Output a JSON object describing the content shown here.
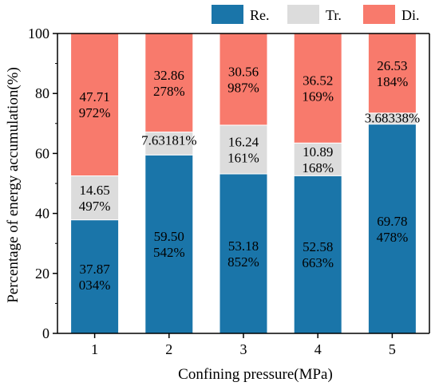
{
  "chart_data": {
    "type": "bar",
    "stacked": true,
    "title": "",
    "xlabel": "Confining pressure(MPa)",
    "ylabel": "Percentage of energy accumulation(%)",
    "categories": [
      "1",
      "2",
      "3",
      "4",
      "5"
    ],
    "ylim": [
      0,
      100
    ],
    "yticks": [
      "0",
      "20",
      "40",
      "60",
      "80",
      "100"
    ],
    "grid": false,
    "legend_position": "top",
    "series": [
      {
        "name": "Re.",
        "color": "#1a75a9",
        "values": [
          37.87034,
          59.50542,
          53.18852,
          52.58663,
          69.78478
        ],
        "labels": [
          [
            "37.87",
            "034%"
          ],
          [
            "59.50",
            "542%"
          ],
          [
            "53.18",
            "852%"
          ],
          [
            "52.58",
            "663%"
          ],
          [
            "69.78",
            "478%"
          ]
        ]
      },
      {
        "name": "Tr.",
        "color": "#dcdcdc",
        "values": [
          14.65497,
          7.63181,
          16.24161,
          10.89168,
          3.68338
        ],
        "labels": [
          [
            "14.65",
            "497%"
          ],
          [
            "7.63181%"
          ],
          [
            "16.24",
            "161%"
          ],
          [
            "10.89",
            "168%"
          ],
          [
            "3.68338%"
          ]
        ]
      },
      {
        "name": "Di.",
        "color": "#f87a6c",
        "values": [
          47.71972,
          32.86278,
          30.56987,
          36.52169,
          26.53184
        ],
        "labels": [
          [
            "47.71",
            "972%"
          ],
          [
            "32.86",
            "278%"
          ],
          [
            "30.56",
            "987%"
          ],
          [
            "36.52",
            "169%"
          ],
          [
            "26.53",
            "184%"
          ]
        ]
      }
    ]
  }
}
